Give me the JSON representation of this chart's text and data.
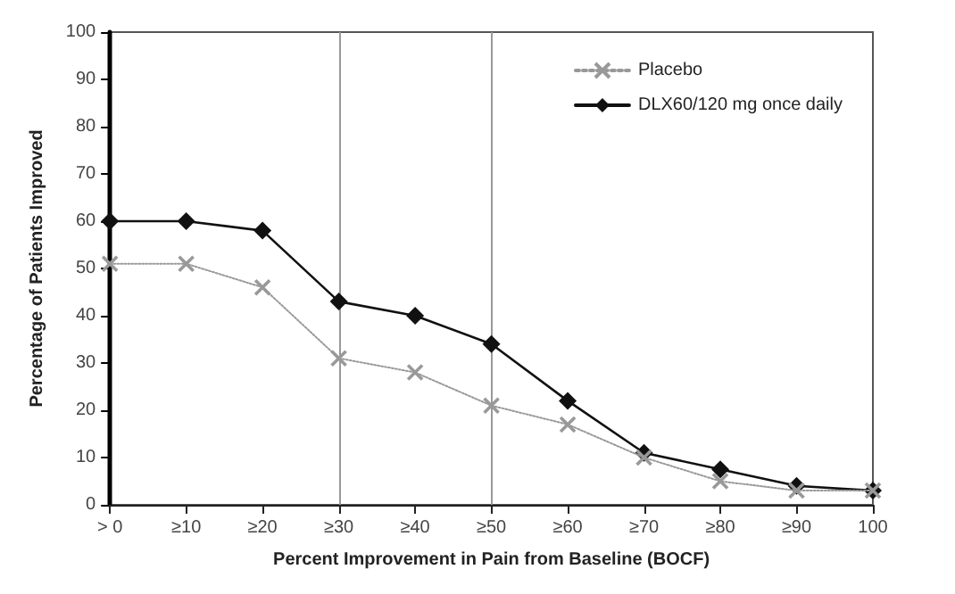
{
  "chart_data": {
    "type": "line",
    "xlabel": "Percent Improvement in Pain from Baseline (BOCF)",
    "ylabel": "Percentage of Patients Improved",
    "categories": [
      "> 0",
      "≥10",
      "≥20",
      "≥30",
      "≥40",
      "≥50",
      "≥60",
      "≥70",
      "≥80",
      "≥90",
      "100"
    ],
    "series": [
      {
        "name": "Placebo",
        "color": "#999999",
        "marker": "cross",
        "line_style": "dotted",
        "values": [
          51,
          51,
          46,
          31,
          28,
          21,
          17,
          10,
          5,
          3,
          3
        ]
      },
      {
        "name": "DLX60/120 mg once daily",
        "color": "#111111",
        "marker": "diamond",
        "line_style": "solid",
        "values": [
          60,
          60,
          58,
          43,
          40,
          34,
          22,
          11,
          7.5,
          4,
          3
        ]
      }
    ],
    "ylim": [
      0,
      100
    ],
    "yticks": [
      0,
      10,
      20,
      30,
      40,
      50,
      60,
      70,
      80,
      90,
      100
    ],
    "ref_lines": [
      {
        "axis": "x",
        "value": "≥30",
        "color": "#999999",
        "line_style": "solid"
      },
      {
        "axis": "x",
        "value": "≥50",
        "color": "#999999",
        "line_style": "solid"
      }
    ],
    "grid": false,
    "legend": "top right"
  }
}
